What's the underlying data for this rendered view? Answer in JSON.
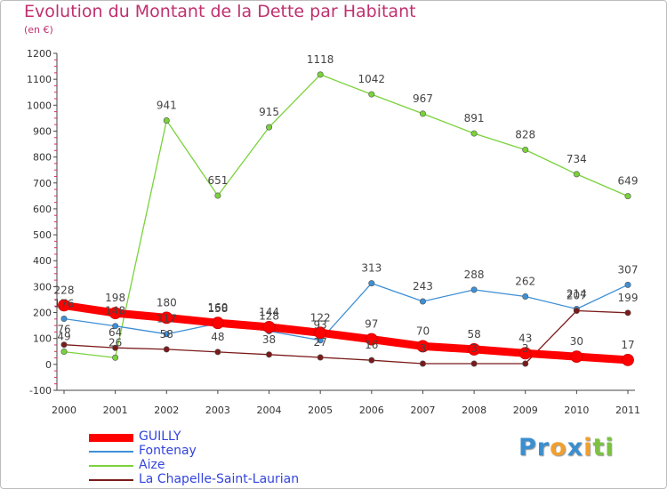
{
  "title": "Evolution du Montant de la Dette par Habitant",
  "subtitle": "(en €)",
  "logo": {
    "text": "Proxiti",
    "letters": [
      {
        "ch": "P",
        "color": "#3a8fd0"
      },
      {
        "ch": "r",
        "color": "#3a8fd0"
      },
      {
        "ch": "o",
        "color": "#f0a030"
      },
      {
        "ch": "x",
        "color": "#3a8fd0"
      },
      {
        "ch": "i",
        "color": "#f0a030"
      },
      {
        "ch": "t",
        "color": "#7cc242"
      },
      {
        "ch": "i",
        "color": "#7cc242"
      }
    ]
  },
  "chart_data": {
    "type": "line",
    "title": "Evolution du Montant de la Dette par Habitant",
    "subtitle": "(en €)",
    "x": [
      2000,
      2001,
      2002,
      2003,
      2004,
      2005,
      2006,
      2007,
      2008,
      2009,
      2010,
      2011
    ],
    "ylim": [
      -100,
      1200
    ],
    "yticks": [
      -100,
      0,
      100,
      200,
      300,
      400,
      500,
      600,
      700,
      800,
      900,
      1000,
      1100,
      1200
    ],
    "grid": false,
    "legend_position": "bottom-left",
    "series": [
      {
        "name": "GUILLY",
        "color": "#ff0000",
        "values": [
          228,
          198,
          180,
          160,
          144,
          122,
          97,
          70,
          58,
          43,
          30,
          17
        ]
      },
      {
        "name": "Fontenay",
        "color": "#3d8fd6",
        "values": [
          176,
          148,
          117,
          158,
          128,
          93,
          313,
          243,
          288,
          262,
          214,
          307
        ]
      },
      {
        "name": "Aize",
        "color": "#7ad23a",
        "values": [
          49,
          26,
          941,
          651,
          915,
          1118,
          1042,
          967,
          891,
          828,
          734,
          649
        ]
      },
      {
        "name": "La Chapelle-Saint-Laurian",
        "color": "#7a1a1a",
        "values": [
          76,
          64,
          58,
          48,
          38,
          27,
          16,
          3,
          3,
          3,
          207,
          199
        ]
      }
    ]
  }
}
